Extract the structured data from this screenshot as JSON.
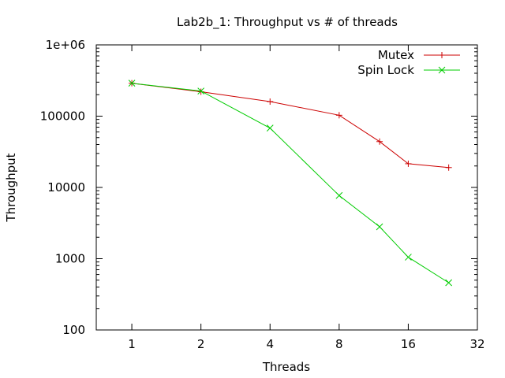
{
  "chart_data": {
    "type": "line",
    "title": "Lab2b_1: Throughput vs # of threads",
    "xlabel": "Threads",
    "ylabel": "Throughput",
    "xscale": "log2",
    "yscale": "log10",
    "xlim": [
      0.7,
      32
    ],
    "ylim": [
      100,
      1000000
    ],
    "xticks": [
      1,
      2,
      4,
      8,
      16,
      32
    ],
    "xtick_labels": [
      "1",
      "2",
      "4",
      "8",
      "16",
      "32"
    ],
    "yticks": [
      100,
      1000,
      10000,
      100000,
      1000000
    ],
    "ytick_labels": [
      "100",
      "1000",
      "10000",
      "100000",
      "1e+06"
    ],
    "grid": false,
    "legend_position": "top-right",
    "series": [
      {
        "name": "Mutex",
        "color": "#cc0000",
        "marker": "plus",
        "x": [
          1,
          2,
          4,
          8,
          12,
          16,
          24
        ],
        "y": [
          290000,
          220000,
          160000,
          103000,
          44000,
          21500,
          19000
        ]
      },
      {
        "name": "Spin Lock",
        "color": "#00cc00",
        "marker": "cross",
        "x": [
          1,
          2,
          4,
          8,
          12,
          16,
          24
        ],
        "y": [
          290000,
          225000,
          68000,
          7700,
          2800,
          1050,
          460
        ]
      }
    ]
  }
}
